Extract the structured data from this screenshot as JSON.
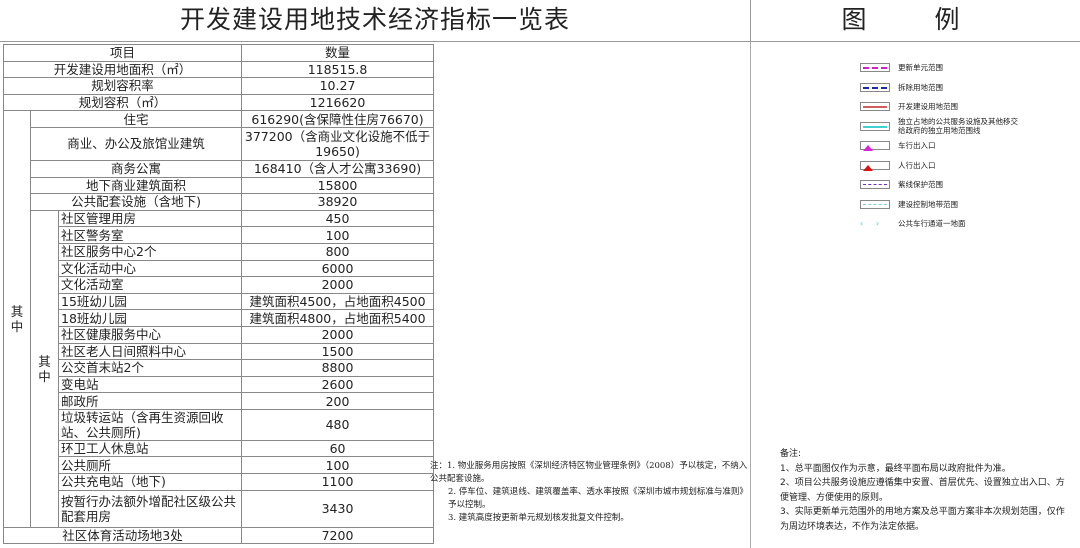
{
  "title": "开发建设用地技术经济指标一览表",
  "legend_title": "图 例",
  "table": {
    "header": [
      "项目",
      "数量"
    ],
    "top_rows": [
      {
        "label": "开发建设用地面积（㎡）",
        "value": "118515.8"
      },
      {
        "label": "规划容积率",
        "value": "10.27"
      },
      {
        "label": "规划容积（㎡）",
        "value": "1216620"
      }
    ],
    "group_label": "其中",
    "group_rows": [
      {
        "label": "住宅",
        "value": "616290(含保障性住房76670)"
      },
      {
        "label": "商业、办公及旅馆业建筑",
        "value": "377200（含商业文化设施不低于19650)"
      },
      {
        "label": "商务公寓",
        "value": "168410（含人才公寓33690)"
      },
      {
        "label": "地下商业建筑面积",
        "value": "15800"
      },
      {
        "label": "公共配套设施（含地下)",
        "value": "38920"
      }
    ],
    "sub_group_label": "其中",
    "sub_rows": [
      {
        "label": "社区管理用房",
        "value": "450"
      },
      {
        "label": "社区警务室",
        "value": "100"
      },
      {
        "label": "社区服务中心2个",
        "value": "800"
      },
      {
        "label": "文化活动中心",
        "value": "6000"
      },
      {
        "label": "文化活动室",
        "value": "2000"
      },
      {
        "label": "15班幼儿园",
        "value": "建筑面积4500，占地面积4500"
      },
      {
        "label": "18班幼儿园",
        "value": "建筑面积4800，占地面积5400"
      },
      {
        "label": "社区健康服务中心",
        "value": "2000"
      },
      {
        "label": "社区老人日间照料中心",
        "value": "1500"
      },
      {
        "label": "公交首末站2个",
        "value": "8800"
      },
      {
        "label": "变电站",
        "value": "2600"
      },
      {
        "label": "邮政所",
        "value": "200"
      },
      {
        "label": "垃圾转运站（含再生资源回收站、公共厕所)",
        "value": "480"
      },
      {
        "label": "环卫工人休息站",
        "value": "60"
      },
      {
        "label": "公共厕所",
        "value": "100"
      },
      {
        "label": "公共充电站（地下)",
        "value": "1100"
      },
      {
        "label": "按暂行办法额外增配社区级公共配套用房",
        "value": "3430"
      }
    ],
    "last_row": {
      "label": "社区体育活动场地3处",
      "value": "7200"
    }
  },
  "notes": [
    "注：1. 物业服务用房按照《深圳经济特区物业管理条例》（2008）予以核定，不纳入公共配套设施。",
    "2. 停车位、建筑退线、建筑覆盖率、透水率按照《深圳市城市规划标准与准则》予以控制。",
    "3. 建筑高度按更新单元规划核发批复文件控制。"
  ],
  "legend": [
    {
      "label": "更新单元范围",
      "color": "#d020d0",
      "style": "dashdot"
    },
    {
      "label": "拆除用地范围",
      "color": "#1a2ab0",
      "style": "dashdot"
    },
    {
      "label": "开发建设用地范围",
      "color": "#d06060",
      "style": "solid"
    },
    {
      "label": "独立占地的公共服务设施及其他移交给政府的独立用地范围线",
      "color": "#40d0d0",
      "style": "solid"
    },
    {
      "label": "车行出入口",
      "color": "#e020e0",
      "style": "triangle"
    },
    {
      "label": "人行出入口",
      "color": "#e01010",
      "style": "triangle"
    },
    {
      "label": "紫线保护范围",
      "color": "#7030c0",
      "style": "dashed"
    },
    {
      "label": "建设控制地带范围",
      "color": "#80d0d0",
      "style": "dashed"
    },
    {
      "label": "公共车行通道一地面",
      "color": "#30d0e0",
      "style": "arrows"
    }
  ],
  "remarks": {
    "title": "备注:",
    "items": [
      "1、总平面图仅作为示意，最终平面布局以政府批件为准。",
      "2、项目公共服务设施应遵循集中安置、首层优先、设置独立出入口、方便管理、方便使用的原则。",
      "3、实际更新单元范围外的用地方案及总平面方案非本次规划范围，仅作为周边环境表达，不作为法定依据。"
    ]
  }
}
